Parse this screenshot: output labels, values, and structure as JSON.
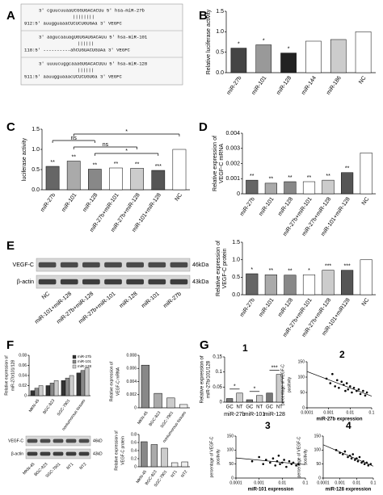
{
  "panel_labels": [
    "A",
    "B",
    "C",
    "D",
    "E",
    "F",
    "G"
  ],
  "g_numbers": [
    "1",
    "2",
    "3",
    "4"
  ],
  "alignment": [
    [
      "3'  cguucuuaaUCGGUGACACUu 5' hsa-miR-27b",
      "||||||||",
      "912:5' auugguaaaCUCUCUGUGAa 3' VEGFC"
    ],
    [
      "3'  aagucaauagUGUGAUGACAUu 5' hsa-miR-101",
      "||||||",
      "118:5' ----------ahCUGUACUGUAa 3' VEGFC"
    ],
    [
      "3'  uuuucuggcaaaGUGACACUUu 5' hsa-miR-128",
      "||||||",
      "511:5' aauugguaaacUCUCUGUGa 3' VEGFC"
    ]
  ],
  "blot_E": {
    "rows": [
      "VEGF-C",
      "β-actin"
    ],
    "sizes": [
      "46kDa",
      "43kDa"
    ],
    "lanes": [
      "NC",
      "miR-101+miR-128",
      "miR-27b+miR-128",
      "miR-27b+miR-101",
      "miR-128",
      "miR-101",
      "miR-27b"
    ]
  },
  "blot_F": {
    "rows": [
      "VEGF-C",
      "β-actin"
    ],
    "sizes": [
      "46kD",
      "43kD"
    ],
    "lanes": [
      "MKN-45",
      "BGC-823",
      "SGC-7901",
      "NT1",
      "NT2"
    ]
  },
  "chart_data": [
    {
      "type": "bar",
      "y_label": [
        "Relative luciferase activity"
      ],
      "categories": [
        "miR-27b",
        "miR-101",
        "miR-128",
        "miR-144",
        "miR-186",
        "NC"
      ],
      "values": [
        0.6,
        0.68,
        0.48,
        0.77,
        0.81,
        1.0
      ],
      "annotations": [
        "*",
        "*",
        "*",
        null,
        null,
        null
      ],
      "colors": [
        "#444",
        "#999",
        "#222",
        "#fff",
        "#ccc",
        "#fff"
      ],
      "ylim": [
        0,
        1.5
      ],
      "yticks": [
        {
          "value": 0,
          "label": "0.0"
        },
        0.5,
        {
          "value": 1,
          "label": "1.0"
        },
        1.5
      ]
    },
    {
      "type": "bar",
      "y_label": [
        "luciferase activity"
      ],
      "categories": [
        "miR-27b",
        "miR-101",
        "miR-128",
        "miR-27b+miR-101",
        "miR-27b+miR-128",
        "miR-101+miR-128",
        "NC"
      ],
      "values": [
        0.58,
        0.71,
        0.51,
        0.54,
        0.53,
        0.48,
        1.0
      ],
      "annotations": [
        "**",
        "**",
        "**",
        "**",
        "**",
        "***",
        null
      ],
      "comparisons": [
        "*",
        "ns",
        "ns",
        "*"
      ],
      "colors": [
        "#666",
        "#aaa",
        "#888",
        "#fff",
        "#ccc",
        "#555",
        "#fff"
      ],
      "ylim": [
        0,
        1.5
      ],
      "yticks": [
        {
          "value": 0,
          "label": "0.0"
        },
        0.5,
        {
          "value": 1,
          "label": "1.0"
        },
        1.5
      ]
    },
    {
      "type": "bar",
      "y_label": [
        "Relative expression of",
        "VEGF-C mRNA"
      ],
      "categories": [
        "miR-27b",
        "miR-101",
        "miR-128",
        "miR-27b+miR-101",
        "miR-27b+miR-128",
        "miR-101+miR-128",
        "NC"
      ],
      "values": [
        0.0009,
        0.0007,
        0.0008,
        0.0008,
        0.0009,
        0.0014,
        0.0027
      ],
      "annotations": [
        "**",
        "**",
        "**",
        "**",
        "**",
        "**",
        null
      ],
      "colors": [
        "#666",
        "#aaa",
        "#888",
        "#fff",
        "#ccc",
        "#555",
        "#fff"
      ],
      "ylim": [
        0,
        0.004
      ],
      "yticks": [
        0,
        0.001,
        0.002,
        0.003,
        0.004
      ]
    },
    {
      "type": "bar",
      "y_label": [
        "Relative expression of",
        "VEGF-C protein"
      ],
      "categories": [
        "miR-27b",
        "miR-101",
        "miR-128",
        "miR-27b+miR-101",
        "miR-27b+miR-128",
        "miR-101+miR128",
        "NC"
      ],
      "values": [
        0.6,
        0.57,
        0.56,
        0.57,
        0.7,
        0.7,
        1.0
      ],
      "annotations": [
        "*",
        "**",
        "**",
        "*",
        "***",
        "***",
        null
      ],
      "colors": [
        "#666",
        "#aaa",
        "#888",
        "#fff",
        "#ccc",
        "#555",
        "#fff"
      ],
      "ylim": [
        0,
        1.5
      ],
      "yticks": [
        {
          "value": 0,
          "label": "0.0"
        },
        0.5,
        {
          "value": 1,
          "label": "1.0"
        },
        1.5
      ]
    },
    {
      "type": "bar",
      "y_label": [
        "Relative expression of",
        "miR-27b/101/128"
      ],
      "categories": [
        "MKN-45",
        "BGC-823",
        "SGC-7901",
        "nontumorous tissues"
      ],
      "series": [
        {
          "name": "miR-27b",
          "color": "#333",
          "values": [
            0.01,
            0.02,
            0.03,
            0.045
          ]
        },
        {
          "name": "miR-101",
          "color": "#888",
          "values": [
            0.015,
            0.025,
            0.035,
            0.05
          ]
        },
        {
          "name": "miR-128",
          "color": "#ccc",
          "values": [
            0.02,
            0.03,
            0.04,
            0.055
          ]
        }
      ],
      "ylim": [
        0,
        0.08
      ],
      "yticks": [
        0,
        0.02,
        0.04,
        0.06,
        0.08
      ]
    },
    {
      "type": "bar",
      "y_label": [
        "Relative expression of",
        "VEGF-C mRNA"
      ],
      "categories": [
        "MKN-45",
        "BGC-823",
        "SGC-7901",
        "nontumorous tissues"
      ],
      "values": [
        0.0065,
        0.0022,
        0.0015,
        0.0005
      ],
      "colors": [
        "#888",
        "#aaa",
        "#ccc",
        "#eee"
      ],
      "ylim": [
        0,
        0.008
      ],
      "yticks": [
        0,
        0.002,
        0.004,
        0.006,
        0.008
      ]
    },
    {
      "type": "bar",
      "y_label": [
        "Relative expression of",
        "VEGF-C protein"
      ],
      "categories": [
        "MKN-45",
        "BGC-823",
        "SGC-7901",
        "NT1",
        "NT2"
      ],
      "values": [
        0.62,
        0.55,
        0.46,
        0.1,
        0.12
      ],
      "colors": [
        "#888",
        "#aaa",
        "#ccc",
        "#eee",
        "#eee"
      ],
      "ylim": [
        0,
        0.8
      ],
      "yticks": [
        0,
        0.2,
        0.4,
        0.6,
        0.8
      ]
    },
    {
      "type": "bar",
      "y_label": [
        "Relative expression of",
        "miR-27b/101/128"
      ],
      "categories": [
        "GC",
        "NT",
        "GC",
        "NT",
        "GC",
        "NT"
      ],
      "groups": [
        "miR-27b",
        "miR-101",
        "miR-128"
      ],
      "values": [
        0.012,
        0.03,
        0.008,
        0.022,
        0.03,
        0.092
      ],
      "annotations": [
        "*",
        "*",
        "***"
      ],
      "colors": [
        "#777",
        "#ccc",
        "#777",
        "#ccc",
        "#777",
        "#ccc"
      ],
      "ylim": [
        0,
        0.15
      ],
      "yticks": [
        0,
        0.05,
        0.1,
        0.15
      ]
    },
    {
      "type": "scatter",
      "y_label": [
        "percentage of VEGF-C",
        "positivity"
      ],
      "x_label": "miR-27b expression",
      "log_x": true,
      "x": [
        0.0008,
        0.0012,
        0.0015,
        0.002,
        0.0025,
        0.003,
        0.004,
        0.005,
        0.006,
        0.007,
        0.008,
        0.01,
        0.012,
        0.015,
        0.02,
        0.025,
        0.03,
        0.04,
        0.05,
        0.06
      ],
      "values": [
        95,
        80,
        110,
        70,
        90,
        65,
        85,
        75,
        55,
        80,
        60,
        70,
        50,
        65,
        55,
        60,
        45,
        55,
        40,
        50
      ],
      "xlim": [
        0.0001,
        0.1
      ],
      "xticks": [
        0.0001,
        0.001,
        0.01,
        0.1
      ],
      "ylim": [
        0,
        150
      ],
      "yticks": [
        0,
        50,
        100,
        150
      ]
    },
    {
      "type": "scatter",
      "y_label": [
        "percentage of VEGF-C",
        "positivity"
      ],
      "x_label": "miR-101 expression",
      "log_x": true,
      "x": [
        0.0005,
        0.001,
        0.0015,
        0.002,
        0.003,
        0.004,
        0.005,
        0.006,
        0.007,
        0.008,
        0.01,
        0.012,
        0.015,
        0.02,
        0.025,
        0.03,
        0.04,
        0.05
      ],
      "values": [
        60,
        75,
        50,
        65,
        55,
        70,
        45,
        60,
        80,
        50,
        55,
        65,
        40,
        60,
        50,
        55,
        45,
        50
      ],
      "xlim": [
        0.0001,
        0.1
      ],
      "xticks": [
        0.0001,
        0.001,
        0.01,
        0.1
      ],
      "ylim": [
        0,
        150
      ],
      "yticks": [
        0,
        50,
        100,
        150
      ]
    },
    {
      "type": "scatter",
      "y_label": [
        "percentage of VEGF-C",
        "positivity"
      ],
      "x_label": "miR-128 expression",
      "log_x": true,
      "x": [
        0.0006,
        0.001,
        0.0015,
        0.002,
        0.003,
        0.004,
        0.005,
        0.006,
        0.008,
        0.01,
        0.012,
        0.015,
        0.02,
        0.025,
        0.03,
        0.04,
        0.05,
        0.07
      ],
      "values": [
        100,
        90,
        85,
        95,
        75,
        80,
        70,
        85,
        65,
        70,
        60,
        75,
        55,
        60,
        50,
        55,
        45,
        50
      ],
      "xlim": [
        0.0001,
        0.1
      ],
      "xticks": [
        0.0001,
        0.001,
        0.01,
        0.1
      ],
      "ylim": [
        0,
        150
      ],
      "yticks": [
        0,
        50,
        100,
        150
      ]
    }
  ]
}
